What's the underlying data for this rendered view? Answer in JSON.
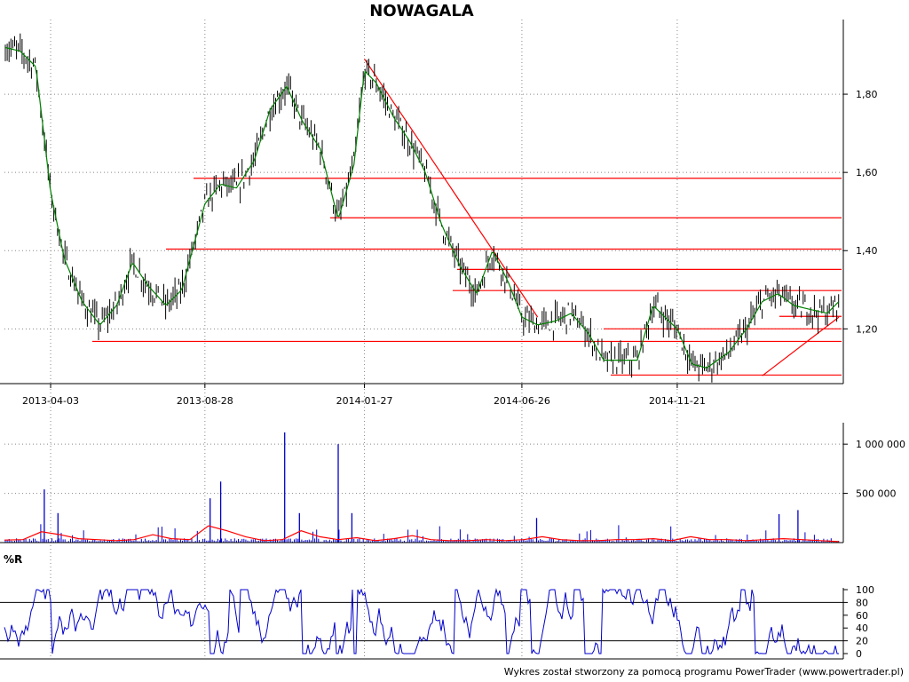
{
  "title": "NOWAGALA",
  "footer": "Wykres został stworzony za pomocą programu PowerTrader (www.powertrader.pl)",
  "colors": {
    "candle": "#000000",
    "moving_average": "#008000",
    "trendline": "#ff0000",
    "volume_bar": "#0000cc",
    "volume_average": "#ff0000",
    "williams_r": "#0000cc",
    "grid": "#888888"
  },
  "chart_data": [
    {
      "type": "line",
      "name": "price",
      "x_tick_labels": [
        "2013-04-03",
        "2013-08-28",
        "2014-01-27",
        "2014-06-26",
        "2014-11-21"
      ],
      "y_tick_labels": [
        "1,20",
        "1,40",
        "1,60",
        "1,80"
      ],
      "ylim": [
        1.06,
        1.95
      ],
      "grid": true,
      "x": [
        "2013-02-18",
        "2013-03-05",
        "2013-03-20",
        "2013-04-03",
        "2013-04-16",
        "2013-05-03",
        "2013-05-20",
        "2013-06-05",
        "2013-06-20",
        "2013-07-05",
        "2013-07-22",
        "2013-08-06",
        "2013-08-28",
        "2013-09-12",
        "2013-09-27",
        "2013-10-14",
        "2013-10-29",
        "2013-11-14",
        "2013-11-29",
        "2013-12-16",
        "2014-01-02",
        "2014-01-17",
        "2014-01-27",
        "2014-02-07",
        "2014-02-24",
        "2014-03-11",
        "2014-03-26",
        "2014-04-10",
        "2014-04-28",
        "2014-05-14",
        "2014-05-29",
        "2014-06-13",
        "2014-06-26",
        "2014-07-11",
        "2014-07-28",
        "2014-08-12",
        "2014-08-28",
        "2014-09-12",
        "2014-09-29",
        "2014-10-14",
        "2014-10-29",
        "2014-11-13",
        "2014-11-21",
        "2014-12-05",
        "2014-12-19",
        "2015-01-09",
        "2015-01-26",
        "2015-02-10",
        "2015-02-25",
        "2015-03-12",
        "2015-03-27",
        "2015-04-13",
        "2015-04-24"
      ],
      "values": [
        1.92,
        1.91,
        1.87,
        1.55,
        1.38,
        1.27,
        1.21,
        1.26,
        1.37,
        1.31,
        1.26,
        1.3,
        1.52,
        1.57,
        1.56,
        1.63,
        1.76,
        1.82,
        1.73,
        1.66,
        1.48,
        1.62,
        1.86,
        1.83,
        1.74,
        1.68,
        1.6,
        1.47,
        1.36,
        1.29,
        1.4,
        1.32,
        1.23,
        1.21,
        1.22,
        1.24,
        1.19,
        1.12,
        1.12,
        1.12,
        1.26,
        1.22,
        1.2,
        1.11,
        1.1,
        1.14,
        1.2,
        1.27,
        1.29,
        1.26,
        1.25,
        1.24,
        1.27
      ],
      "horizontal_levels": [
        1.585,
        1.484,
        1.404,
        1.352,
        1.298,
        1.232,
        1.2,
        1.168,
        1.082
      ],
      "trendlines": [
        {
          "from": [
            "2014-01-27",
            1.89
          ],
          "to": [
            "2014-07-11",
            1.23
          ]
        },
        {
          "from": [
            "2015-02-10",
            1.08
          ],
          "to": [
            "2015-04-24",
            1.23
          ]
        }
      ]
    },
    {
      "type": "bar",
      "name": "volume",
      "y_tick_labels": [
        "500 000",
        "1 000 000"
      ],
      "ylim": [
        0,
        1200000
      ],
      "spikes": [
        {
          "x": "2013-03-28",
          "value": 540000
        },
        {
          "x": "2013-04-10",
          "value": 300000
        },
        {
          "x": "2013-09-02",
          "value": 450000
        },
        {
          "x": "2013-09-12",
          "value": 620000
        },
        {
          "x": "2013-11-12",
          "value": 1120000
        },
        {
          "x": "2013-11-26",
          "value": 300000
        },
        {
          "x": "2014-01-02",
          "value": 1000000
        },
        {
          "x": "2014-01-15",
          "value": 300000
        },
        {
          "x": "2014-07-10",
          "value": 250000
        },
        {
          "x": "2015-02-26",
          "value": 290000
        },
        {
          "x": "2015-03-16",
          "value": 330000
        }
      ],
      "average": [
        25000,
        30000,
        110000,
        80000,
        40000,
        30000,
        20000,
        30000,
        80000,
        40000,
        30000,
        170000,
        120000,
        60000,
        20000,
        30000,
        120000,
        60000,
        30000,
        50000,
        20000,
        40000,
        70000,
        30000,
        20000,
        20000,
        30000,
        20000,
        30000,
        60000,
        30000,
        20000,
        20000,
        30000,
        30000,
        40000,
        20000,
        60000,
        30000,
        30000,
        20000,
        30000,
        40000,
        30000,
        20000,
        10000
      ]
    },
    {
      "type": "line",
      "name": "%R",
      "label": "%R",
      "y_tick_labels": [
        "0",
        "20",
        "40",
        "60",
        "80",
        "100"
      ],
      "ylim": [
        0,
        100
      ],
      "reference_lines": [
        20,
        80
      ]
    }
  ]
}
